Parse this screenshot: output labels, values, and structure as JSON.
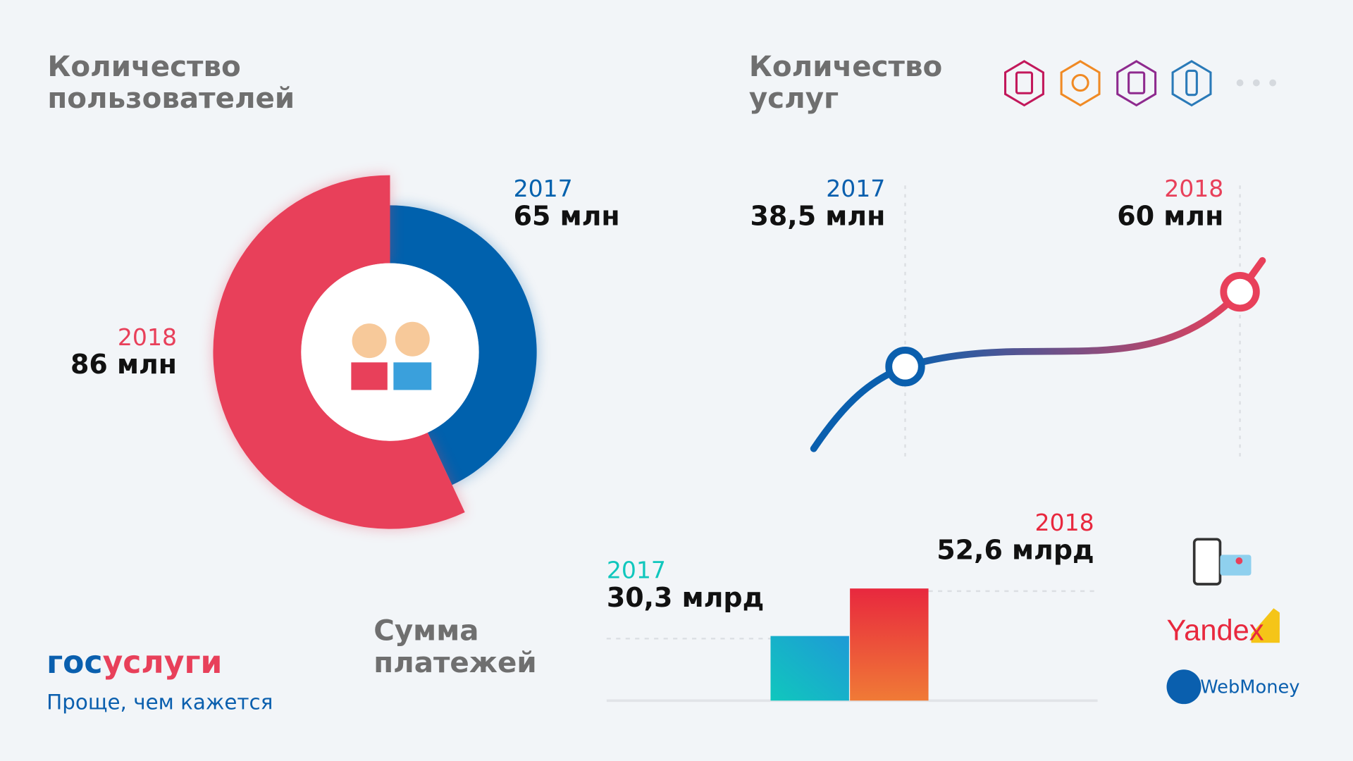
{
  "chart_data": [
    {
      "type": "donut",
      "title": [
        "Количество",
        "пользователей"
      ],
      "categories": [
        "2017",
        "2018"
      ],
      "values": [
        65,
        86
      ],
      "value_labels": [
        "65 млн",
        "86 млн"
      ],
      "colors": [
        "#0061ad",
        "#e8405a"
      ]
    },
    {
      "type": "line",
      "title": [
        "Количество",
        "услуг"
      ],
      "categories": [
        "2017",
        "2018"
      ],
      "values": [
        38.5,
        60
      ],
      "value_labels": [
        "38,5 млн",
        "60 млн"
      ],
      "colors": [
        "#0a5fae",
        "#e8405a"
      ]
    },
    {
      "type": "bar",
      "title": [
        "Сумма",
        "платежей"
      ],
      "categories": [
        "2017",
        "2018"
      ],
      "values": [
        30.3,
        52.6
      ],
      "value_labels": [
        "30,3 млрд",
        "52,6 млрд"
      ],
      "colors": [
        "#10c7bd",
        "#e8283e"
      ]
    }
  ],
  "brand": {
    "name_parts": [
      "гос",
      "услуги"
    ],
    "slogan": "Проще, чем кажется"
  },
  "payment_methods": [
    "Yandex",
    "WebMoney"
  ]
}
